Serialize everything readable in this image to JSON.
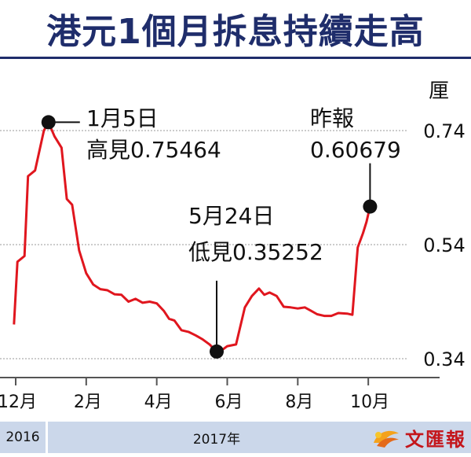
{
  "title": "港元1個月拆息持續走高",
  "chart_data": {
    "type": "line",
    "unit_label": "厘",
    "ylim": [
      0.34,
      0.74
    ],
    "yticks": [
      {
        "value": 0.74,
        "label": "0.74"
      },
      {
        "value": 0.54,
        "label": "0.54"
      },
      {
        "value": 0.34,
        "label": "0.34"
      }
    ],
    "xlim": [
      0,
      11.8
    ],
    "xticks": [
      {
        "pos": 0,
        "label": "12月"
      },
      {
        "pos": 2,
        "label": "2月"
      },
      {
        "pos": 4,
        "label": "4月"
      },
      {
        "pos": 6,
        "label": "6月"
      },
      {
        "pos": 8,
        "label": "8月"
      },
      {
        "pos": 10,
        "label": "10月"
      }
    ],
    "series": [
      {
        "color": "#e0161e",
        "points": [
          [
            -0.05,
            0.4
          ],
          [
            0.05,
            0.51
          ],
          [
            0.25,
            0.52
          ],
          [
            0.35,
            0.66
          ],
          [
            0.55,
            0.67
          ],
          [
            0.8,
            0.74
          ],
          [
            0.93,
            0.7546
          ],
          [
            1.1,
            0.73
          ],
          [
            1.3,
            0.71
          ],
          [
            1.45,
            0.62
          ],
          [
            1.6,
            0.61
          ],
          [
            1.8,
            0.53
          ],
          [
            2.0,
            0.49
          ],
          [
            2.2,
            0.47
          ],
          [
            2.4,
            0.462
          ],
          [
            2.6,
            0.46
          ],
          [
            2.8,
            0.453
          ],
          [
            3.0,
            0.452
          ],
          [
            3.2,
            0.44
          ],
          [
            3.4,
            0.445
          ],
          [
            3.6,
            0.438
          ],
          [
            3.8,
            0.44
          ],
          [
            4.0,
            0.437
          ],
          [
            4.2,
            0.424
          ],
          [
            4.35,
            0.41
          ],
          [
            4.5,
            0.407
          ],
          [
            4.7,
            0.39
          ],
          [
            4.9,
            0.387
          ],
          [
            5.1,
            0.381
          ],
          [
            5.3,
            0.374
          ],
          [
            5.5,
            0.365
          ],
          [
            5.7,
            0.3525
          ],
          [
            5.85,
            0.355
          ],
          [
            6.0,
            0.362
          ],
          [
            6.25,
            0.365
          ],
          [
            6.5,
            0.43
          ],
          [
            6.7,
            0.45
          ],
          [
            6.9,
            0.463
          ],
          [
            7.05,
            0.452
          ],
          [
            7.2,
            0.456
          ],
          [
            7.4,
            0.45
          ],
          [
            7.6,
            0.431
          ],
          [
            7.8,
            0.43
          ],
          [
            8.0,
            0.428
          ],
          [
            8.2,
            0.43
          ],
          [
            8.35,
            0.425
          ],
          [
            8.55,
            0.418
          ],
          [
            8.75,
            0.415
          ],
          [
            8.95,
            0.415
          ],
          [
            9.15,
            0.42
          ],
          [
            9.4,
            0.419
          ],
          [
            9.55,
            0.417
          ],
          [
            9.7,
            0.535
          ],
          [
            9.85,
            0.56
          ],
          [
            9.95,
            0.58
          ],
          [
            10.05,
            0.607
          ]
        ]
      }
    ],
    "annotations": [
      {
        "x": 0.93,
        "y": 0.75464,
        "line1": "1月5日",
        "line2": "高見0.75464"
      },
      {
        "x": 5.7,
        "y": 0.35252,
        "line1": "5月24日",
        "line2": "低見0.35252"
      },
      {
        "x": 10.05,
        "y": 0.60679,
        "line1": "昨報",
        "line2": "0.60679"
      }
    ]
  },
  "timeline": {
    "left_year": "2016",
    "right_year": "2017年"
  },
  "logo": {
    "text": "文匯報"
  },
  "colors": {
    "title": "#1f2d6b",
    "line": "#e0161e",
    "year_band": "#cbd7ea",
    "logo": "#c4161c"
  }
}
